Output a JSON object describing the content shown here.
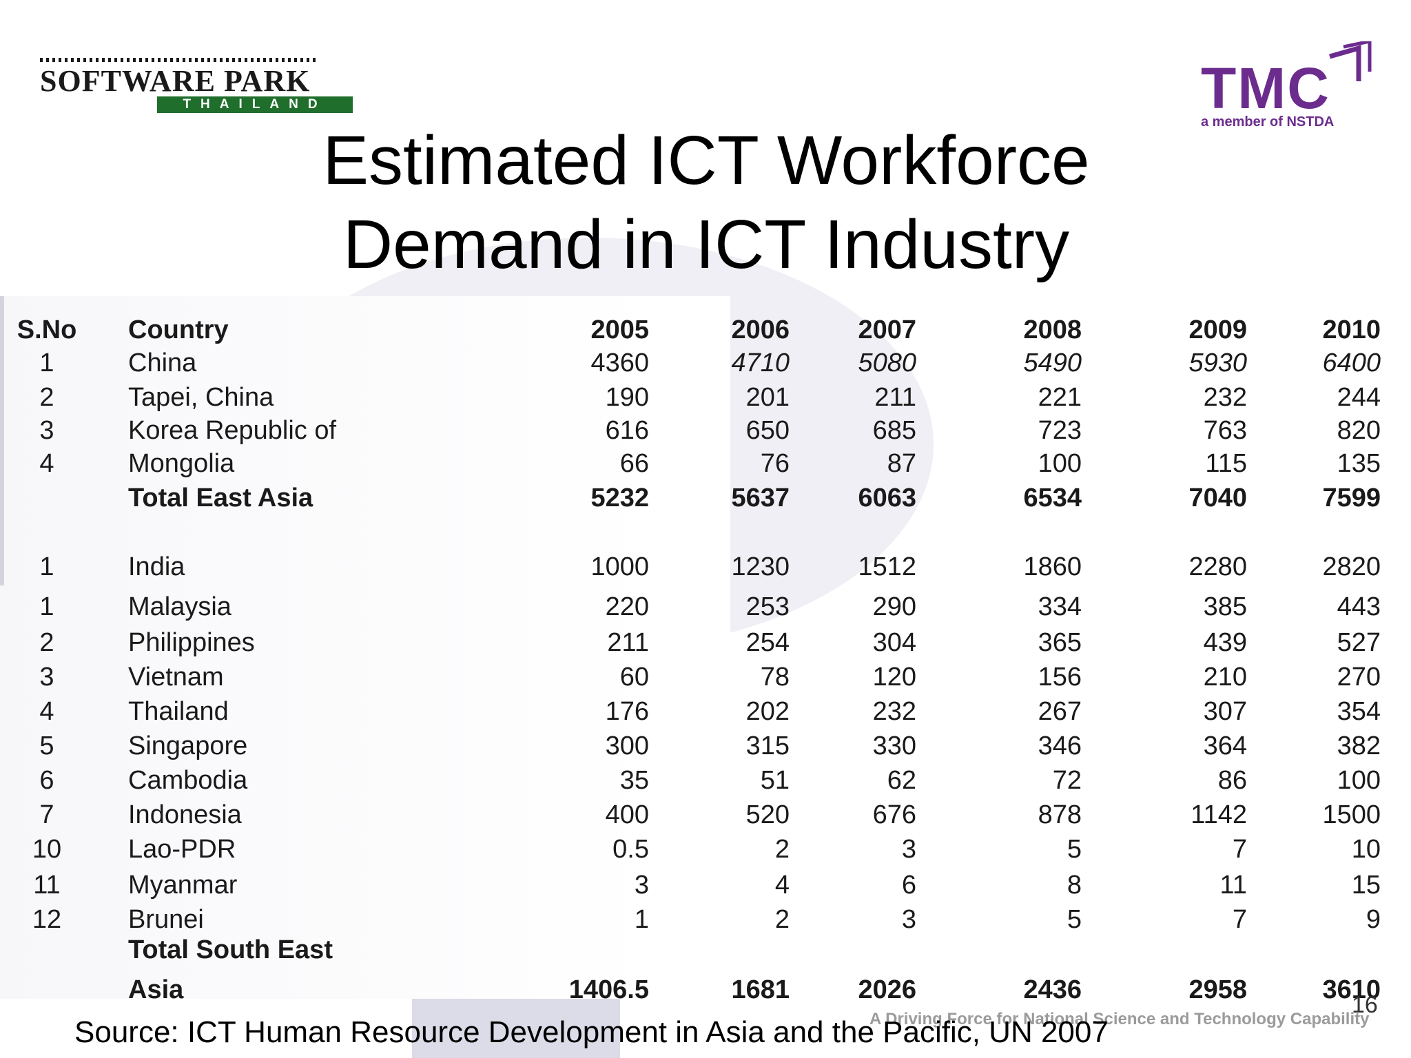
{
  "logos": {
    "software_park": {
      "main": "SOFTWARE PARK",
      "sub": "THAILAND"
    },
    "tmc": {
      "main": "TMC",
      "sub": "a member of NSTDA",
      "color": "#6b2c8e"
    }
  },
  "title": {
    "line1": "Estimated ICT Workforce",
    "line2": "Demand in ICT Industry"
  },
  "table": {
    "headers": [
      "S.No",
      "Country",
      "2005",
      "2006",
      "2007",
      "2008",
      "2009",
      "2010"
    ],
    "rows": [
      {
        "sno": "1",
        "country": "China",
        "values": [
          "4360",
          "4710",
          "5080",
          "5490",
          "5930",
          "6400"
        ],
        "italic_from": 1
      },
      {
        "sno": "2",
        "country": "Tapei, China",
        "values": [
          "190",
          "201",
          "211",
          "221",
          "232",
          "244"
        ]
      },
      {
        "sno": "3",
        "country": "Korea Republic of",
        "values": [
          "616",
          "650",
          "685",
          "723",
          "763",
          "820"
        ]
      },
      {
        "sno": "4",
        "country": "Mongolia",
        "values": [
          "66",
          "76",
          "87",
          "100",
          "115",
          "135"
        ]
      },
      {
        "sno": "",
        "country": "Total East Asia",
        "values": [
          "5232",
          "5637",
          "6063",
          "6534",
          "7040",
          "7599"
        ],
        "total": true
      },
      {
        "sno": "1",
        "country": "India",
        "values": [
          "1000",
          "1230",
          "1512",
          "1860",
          "2280",
          "2820"
        ]
      },
      {
        "sno": "1",
        "country": "Malaysia",
        "values": [
          "220",
          "253",
          "290",
          "334",
          "385",
          "443"
        ]
      },
      {
        "sno": "2",
        "country": "Philippines",
        "values": [
          "211",
          "254",
          "304",
          "365",
          "439",
          "527"
        ]
      },
      {
        "sno": "3",
        "country": "Vietnam",
        "values": [
          "60",
          "78",
          "120",
          "156",
          "210",
          "270"
        ]
      },
      {
        "sno": "4",
        "country": "Thailand",
        "values": [
          "176",
          "202",
          "232",
          "267",
          "307",
          "354"
        ]
      },
      {
        "sno": "5",
        "country": "Singapore",
        "values": [
          "300",
          "315",
          "330",
          "346",
          "364",
          "382"
        ]
      },
      {
        "sno": "6",
        "country": "Cambodia",
        "values": [
          "35",
          "51",
          "62",
          "72",
          "86",
          "100"
        ]
      },
      {
        "sno": "7",
        "country": "Indonesia",
        "values": [
          "400",
          "520",
          "676",
          "878",
          "1142",
          "1500"
        ]
      },
      {
        "sno": "10",
        "country": "Lao-PDR",
        "values": [
          "0.5",
          "2",
          "3",
          "5",
          "7",
          "10"
        ]
      },
      {
        "sno": "11",
        "country": "Myanmar",
        "values": [
          "3",
          "4",
          "6",
          "8",
          "11",
          "15"
        ]
      },
      {
        "sno": "12",
        "country": "Brunei",
        "values": [
          "1",
          "2",
          "3",
          "5",
          "7",
          "9"
        ]
      }
    ],
    "total_sea": {
      "label_line1": "Total South East",
      "label_line2": "Asia",
      "values": [
        "1406.5",
        "1681",
        "2026",
        "2436",
        "2958",
        "3610"
      ]
    }
  },
  "footer": {
    "source": "Source: ICT Human Resource Development in Asia and the Pacific, UN 2007",
    "tagline": "A Driving Force for National Science and Technology Capability",
    "page_number": "16"
  }
}
